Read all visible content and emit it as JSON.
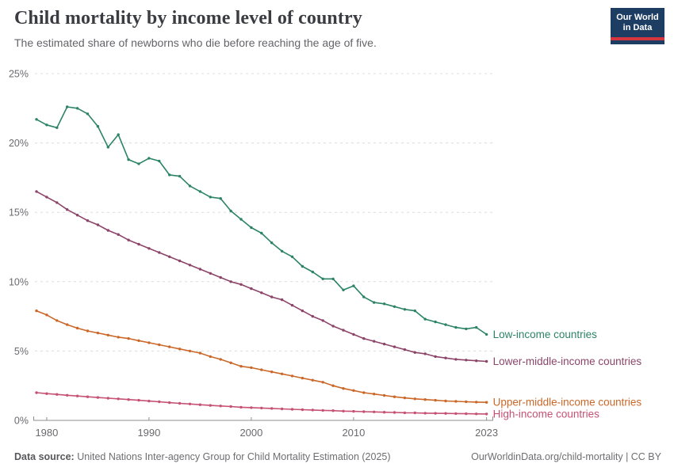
{
  "header": {
    "title": "Child mortality by income level of country",
    "subtitle": "The estimated share of newborns who die before reaching the age of five."
  },
  "logo": {
    "line1": "Our World",
    "line2": "in Data",
    "bg_color": "#1D3D63",
    "accent_color": "#D6353F"
  },
  "chart_data": {
    "type": "line",
    "title": "Child mortality by income level of country",
    "xlabel": "",
    "ylabel": "",
    "ylim": [
      0,
      25
    ],
    "yticks": [
      0,
      5,
      10,
      15,
      20,
      25
    ],
    "ytick_labels": [
      "0%",
      "5%",
      "10%",
      "15%",
      "20%",
      "25%"
    ],
    "xticks": [
      1980,
      1990,
      2000,
      2010,
      2023
    ],
    "grid": "horizontal-dashed",
    "legend_position": "line-end-labels",
    "x": [
      1979,
      1980,
      1981,
      1982,
      1983,
      1984,
      1985,
      1986,
      1987,
      1988,
      1989,
      1990,
      1991,
      1992,
      1993,
      1994,
      1995,
      1996,
      1997,
      1998,
      1999,
      2000,
      2001,
      2002,
      2003,
      2004,
      2005,
      2006,
      2007,
      2008,
      2009,
      2010,
      2011,
      2012,
      2013,
      2014,
      2015,
      2016,
      2017,
      2018,
      2019,
      2020,
      2021,
      2022,
      2023
    ],
    "series": [
      {
        "name": "Low-income countries",
        "color": "#2C8465",
        "values": [
          21.7,
          21.3,
          21.1,
          22.6,
          22.5,
          22.1,
          21.2,
          19.7,
          20.6,
          18.8,
          18.5,
          18.9,
          18.7,
          17.7,
          17.6,
          16.9,
          16.5,
          16.1,
          16.0,
          15.1,
          14.5,
          13.9,
          13.5,
          12.8,
          12.2,
          11.8,
          11.1,
          10.7,
          10.2,
          10.2,
          9.4,
          9.7,
          8.9,
          8.5,
          8.4,
          8.2,
          8.0,
          7.9,
          7.3,
          7.1,
          6.9,
          6.7,
          6.6,
          6.7,
          6.2
        ]
      },
      {
        "name": "Lower-middle-income countries",
        "color": "#8C4569",
        "values": [
          16.5,
          16.1,
          15.7,
          15.2,
          14.8,
          14.4,
          14.1,
          13.7,
          13.4,
          13.0,
          12.7,
          12.4,
          12.1,
          11.8,
          11.5,
          11.2,
          10.9,
          10.6,
          10.3,
          10.0,
          9.8,
          9.5,
          9.2,
          8.9,
          8.7,
          8.3,
          7.9,
          7.5,
          7.2,
          6.8,
          6.5,
          6.2,
          5.9,
          5.7,
          5.5,
          5.3,
          5.1,
          4.9,
          4.8,
          4.6,
          4.5,
          4.4,
          4.35,
          4.3,
          4.25
        ]
      },
      {
        "name": "Upper-middle-income countries",
        "color": "#CB6829",
        "values": [
          7.9,
          7.6,
          7.2,
          6.9,
          6.65,
          6.45,
          6.3,
          6.15,
          6.0,
          5.9,
          5.75,
          5.6,
          5.45,
          5.3,
          5.15,
          5.0,
          4.85,
          4.6,
          4.4,
          4.15,
          3.9,
          3.8,
          3.65,
          3.5,
          3.35,
          3.2,
          3.05,
          2.9,
          2.75,
          2.5,
          2.3,
          2.15,
          2.0,
          1.9,
          1.8,
          1.7,
          1.62,
          1.55,
          1.5,
          1.45,
          1.4,
          1.37,
          1.34,
          1.32,
          1.3
        ]
      },
      {
        "name": "High-income countries",
        "color": "#C65173",
        "values": [
          2.0,
          1.93,
          1.87,
          1.81,
          1.76,
          1.7,
          1.65,
          1.6,
          1.55,
          1.5,
          1.45,
          1.39,
          1.34,
          1.28,
          1.23,
          1.18,
          1.13,
          1.08,
          1.04,
          1.0,
          0.95,
          0.92,
          0.89,
          0.86,
          0.83,
          0.8,
          0.77,
          0.75,
          0.72,
          0.7,
          0.67,
          0.65,
          0.63,
          0.61,
          0.59,
          0.57,
          0.55,
          0.54,
          0.52,
          0.51,
          0.5,
          0.49,
          0.48,
          0.47,
          0.46
        ]
      }
    ]
  },
  "footer": {
    "datasource_label": "Data source:",
    "datasource_text": "United Nations Inter-agency Group for Child Mortality Estimation (2025)",
    "link": "OurWorldinData.org/child-mortality | CC BY"
  }
}
